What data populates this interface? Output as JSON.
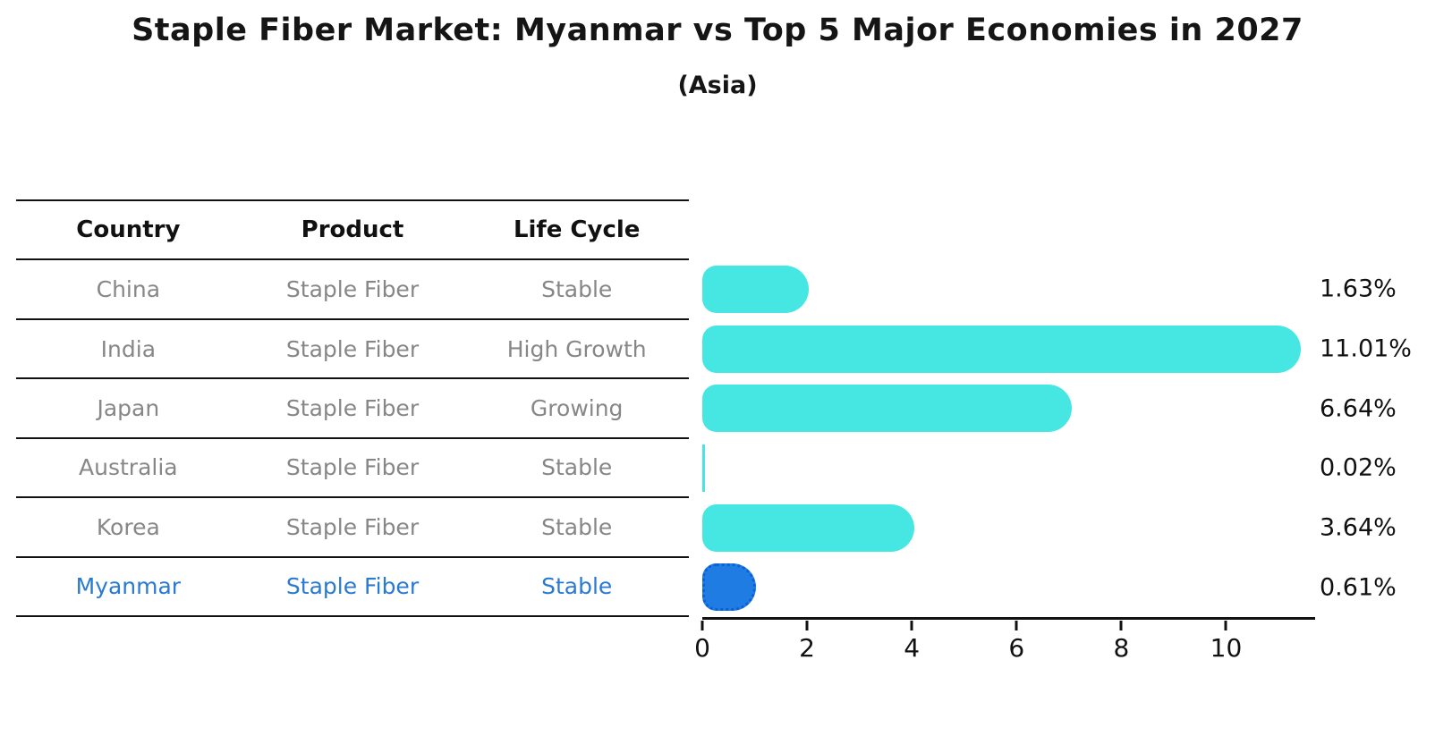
{
  "page": {
    "title": "Staple Fiber Market: Myanmar vs Top 5 Major Economies in 2027",
    "subtitle": "(Asia)"
  },
  "table": {
    "columns": [
      "Country",
      "Product",
      "Life Cycle"
    ],
    "rows": [
      {
        "country": "China",
        "product": "Staple Fiber",
        "life_cycle": "Stable",
        "highlight": false
      },
      {
        "country": "India",
        "product": "Staple Fiber",
        "life_cycle": "High Growth",
        "highlight": false
      },
      {
        "country": "Japan",
        "product": "Staple Fiber",
        "life_cycle": "Growing",
        "highlight": false
      },
      {
        "country": "Australia",
        "product": "Staple Fiber",
        "life_cycle": "Stable",
        "highlight": false
      },
      {
        "country": "Korea",
        "product": "Staple Fiber",
        "life_cycle": "Stable",
        "highlight": false
      },
      {
        "country": "Myanmar",
        "product": "Staple Fiber",
        "life_cycle": "Stable",
        "highlight": true
      }
    ]
  },
  "chart_data": {
    "type": "bar",
    "orientation": "horizontal",
    "title": "Staple Fiber Market: Myanmar vs Top 5 Major Economies in 2027",
    "subtitle": "(Asia)",
    "categories": [
      "China",
      "India",
      "Japan",
      "Australia",
      "Korea",
      "Myanmar"
    ],
    "values": [
      1.63,
      11.01,
      6.64,
      0.02,
      3.64,
      0.61
    ],
    "value_labels": [
      "1.63%",
      "11.01%",
      "6.64%",
      "0.02%",
      "3.64%",
      "0.61%"
    ],
    "xticks": [
      0,
      2,
      4,
      6,
      8,
      10
    ],
    "xlim": [
      0,
      11.7
    ],
    "highlight_index": 5,
    "grid": false,
    "legend": false,
    "colors": {
      "bar": "#46E6E2",
      "highlight_bar": "#1E7CE3",
      "highlight_text": "#2A7AD2",
      "row_text": "#878787",
      "axis": "#111111"
    }
  }
}
